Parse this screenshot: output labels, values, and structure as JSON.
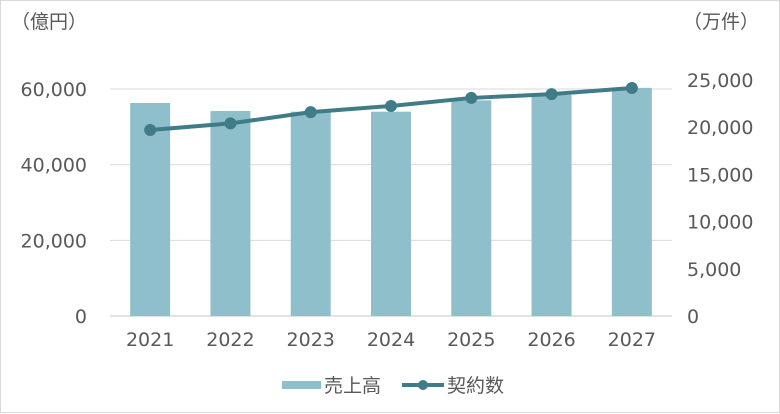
{
  "chart_data": {
    "type": "bar+line",
    "title": "",
    "categories": [
      "2021",
      "2022",
      "2023",
      "2024",
      "2025",
      "2026",
      "2027"
    ],
    "series": [
      {
        "name": "売上高",
        "type": "bar",
        "axis": "left",
        "color": "#8FBFCA",
        "values": [
          56300,
          54200,
          54000,
          54000,
          57000,
          58400,
          60300
        ]
      },
      {
        "name": "契約数",
        "type": "line",
        "axis": "right",
        "color": "#3F7C88",
        "values": [
          19700,
          20400,
          21600,
          22250,
          23100,
          23500,
          24150
        ]
      }
    ],
    "left_axis": {
      "label": "（億円）",
      "ticks": [
        0,
        20000,
        40000,
        60000
      ],
      "tick_labels": [
        "0",
        "20,000",
        "40,000",
        "60,000"
      ],
      "ylim": [
        0,
        60000
      ]
    },
    "right_axis": {
      "label": "（万件）",
      "ticks": [
        0,
        5000,
        10000,
        15000,
        20000,
        25000
      ],
      "tick_labels": [
        "0",
        "5,000",
        "10,000",
        "15,000",
        "20,000",
        "25,000"
      ],
      "ylim": [
        0,
        25000
      ]
    },
    "xlabel": "",
    "grid": true,
    "legend_position": "bottom"
  },
  "labels": {
    "left_unit": "（億円）",
    "right_unit": "（万件）",
    "legend_bar": "売上高",
    "legend_line": "契約数"
  }
}
